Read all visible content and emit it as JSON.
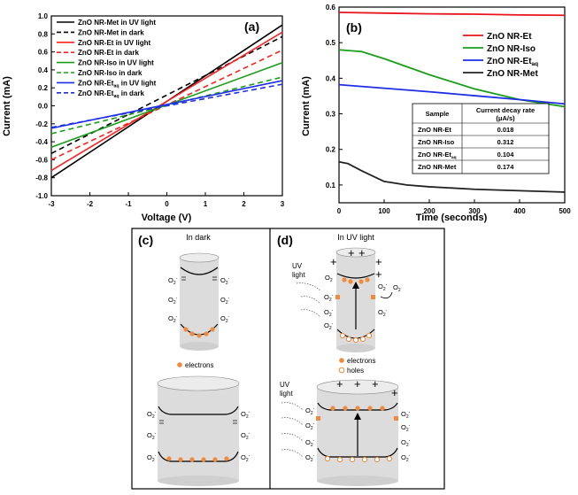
{
  "chart_data": [
    {
      "type": "line",
      "panel_label": "(a)",
      "xlabel": "Voltage (V)",
      "ylabel": "Current (mA)",
      "xlim": [
        -3,
        3
      ],
      "ylim": [
        -1.0,
        1.0
      ],
      "xticks": [
        "-3",
        "-2",
        "-1",
        "0",
        "1",
        "2",
        "3"
      ],
      "yticks": [
        "-1.0",
        "-0.8",
        "-0.6",
        "-0.4",
        "-0.2",
        "0.0",
        "0.2",
        "0.4",
        "0.6",
        "0.8",
        "1.0"
      ],
      "legend_position": "top-left",
      "series": [
        {
          "name": "ZnO NR-Met in UV light",
          "color": "#000000",
          "dash": "solid",
          "x": [
            -3,
            3
          ],
          "y": [
            -0.8,
            0.9
          ]
        },
        {
          "name": "ZnO NR-Met in dark",
          "color": "#000000",
          "dash": "dashed",
          "x": [
            -3,
            3
          ],
          "y": [
            -0.53,
            0.77
          ]
        },
        {
          "name": "ZnO NR-Et in UV light",
          "color": "#ff2020",
          "dash": "solid",
          "x": [
            -3,
            3
          ],
          "y": [
            -0.72,
            0.82
          ]
        },
        {
          "name": "ZnO NR-Et in dark",
          "color": "#ff2020",
          "dash": "dashed",
          "x": [
            -3,
            3
          ],
          "y": [
            -0.6,
            0.62
          ]
        },
        {
          "name": "ZnO NR-Iso in UV light",
          "color": "#1a9e1a",
          "dash": "solid",
          "x": [
            -3,
            3
          ],
          "y": [
            -0.46,
            0.48
          ]
        },
        {
          "name": "ZnO NR-Iso in dark",
          "color": "#1a9e1a",
          "dash": "dashed",
          "x": [
            -3,
            3
          ],
          "y": [
            -0.31,
            0.32
          ]
        },
        {
          "name": "ZnO NR-Etₐq in UV light",
          "name_main": "ZnO NR-Et",
          "name_sub": "aq",
          "name_tail": " in UV light",
          "color": "#1f2ee6",
          "dash": "solid",
          "x": [
            -3,
            3
          ],
          "y": [
            -0.25,
            0.28
          ]
        },
        {
          "name": "ZnO NR-Etₐq in dark",
          "name_main": "ZnO NR-Et",
          "name_sub": "aq",
          "name_tail": " in dark",
          "color": "#1f2ee6",
          "dash": "dashed",
          "x": [
            -3,
            3
          ],
          "y": [
            -0.24,
            0.24
          ]
        }
      ]
    },
    {
      "type": "line",
      "panel_label": "(b)",
      "xlabel": "Time (seconds)",
      "ylabel": "Current (mA)",
      "xlim": [
        0,
        500
      ],
      "ylim": [
        0.05,
        0.6
      ],
      "xticks": [
        "0",
        "100",
        "200",
        "300",
        "400",
        "500"
      ],
      "yticks": [
        "0.1",
        "0.2",
        "0.3",
        "0.4",
        "0.5",
        "0.6"
      ],
      "legend_position": "top-right",
      "series": [
        {
          "name": "ZnO NR-Et",
          "color": "#e8141e",
          "x": [
            0,
            100,
            200,
            300,
            400,
            500
          ],
          "y": [
            0.585,
            0.583,
            0.581,
            0.58,
            0.578,
            0.577
          ]
        },
        {
          "name": "ZnO NR-Iso",
          "color": "#1a9e1a",
          "x": [
            0,
            50,
            100,
            200,
            300,
            400,
            500
          ],
          "y": [
            0.48,
            0.475,
            0.455,
            0.41,
            0.37,
            0.34,
            0.32
          ]
        },
        {
          "name": "ZnO NR-Etₐq",
          "name_main": "ZnO NR-Et",
          "name_sub": "aq",
          "color": "#1f2ee6",
          "x": [
            0,
            100,
            200,
            300,
            400,
            500
          ],
          "y": [
            0.382,
            0.372,
            0.362,
            0.351,
            0.34,
            0.328
          ]
        },
        {
          "name": "ZnO NR-Met",
          "color": "#222222",
          "x": [
            0,
            20,
            50,
            100,
            150,
            200,
            300,
            400,
            500
          ],
          "y": [
            0.165,
            0.16,
            0.14,
            0.11,
            0.1,
            0.095,
            0.088,
            0.084,
            0.08
          ]
        }
      ],
      "table": {
        "headers": [
          "Sample",
          "Current decay rate",
          "(μA/s)"
        ],
        "rows": [
          {
            "sample": "ZnO NR-Et",
            "sub": "",
            "rate": "0.018"
          },
          {
            "sample": "ZnO NR-Iso",
            "sub": "",
            "rate": "0.312"
          },
          {
            "sample": "ZnO NR-Et",
            "sub": "aq",
            "rate": "0.104"
          },
          {
            "sample": "ZnO NR-Met",
            "sub": "",
            "rate": "0.174"
          }
        ]
      }
    }
  ],
  "diagram": {
    "panel_c": {
      "label": "(c)",
      "title": "In dark",
      "o2_label": "O",
      "legend_text": "electrons"
    },
    "panel_d": {
      "label": "(d)",
      "title": "In UV light",
      "uv_label_1": "UV",
      "uv_label_2": "light",
      "legend_electrons": "electrons",
      "legend_holes": "holes"
    }
  },
  "colors": {
    "electron": "#f08a3c",
    "cylinder": "#dcdcdc",
    "cylinder_top": "#e8e8e8"
  }
}
